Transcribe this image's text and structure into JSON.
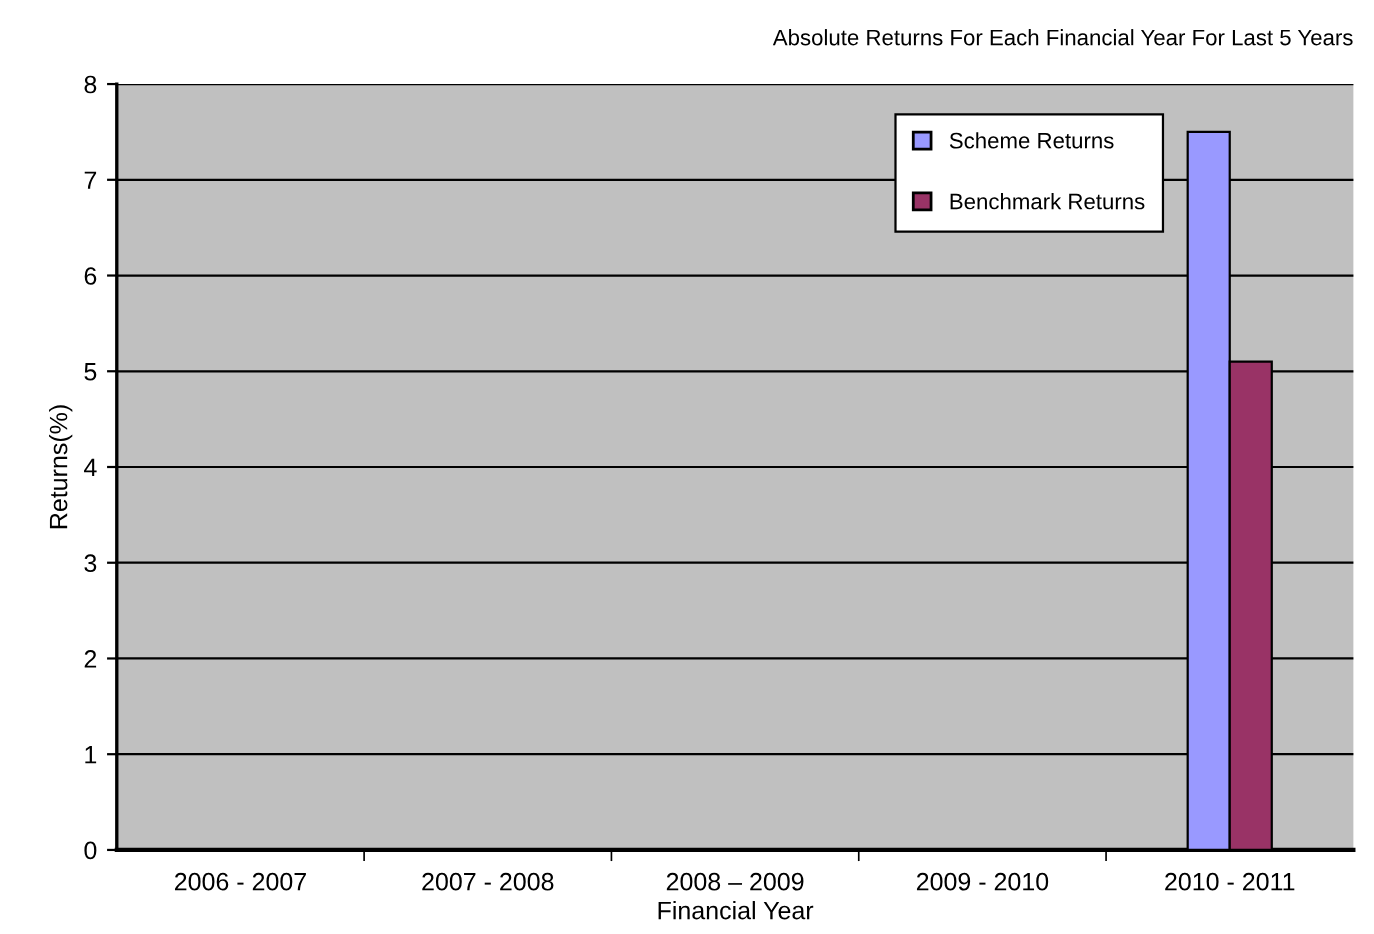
{
  "chart_data": {
    "type": "bar",
    "title": "Absolute Returns For Each Financial Year For Last 5 Years",
    "xlabel": "Financial Year",
    "ylabel": "Returns(%)",
    "categories": [
      "2006 - 2007",
      "2007 - 2008",
      "2008 – 2009",
      "2009 - 2010",
      "2010 - 2011"
    ],
    "series": [
      {
        "name": "Scheme Returns",
        "color": "#9999ff",
        "values": [
          null,
          null,
          null,
          null,
          7.5
        ]
      },
      {
        "name": "Benchmark Returns",
        "color": "#993366",
        "values": [
          null,
          null,
          null,
          null,
          5.1
        ]
      }
    ],
    "ylim": [
      0,
      8
    ],
    "yticks": [
      0,
      1,
      2,
      3,
      4,
      5,
      6,
      7,
      8
    ],
    "grid": "y",
    "legend": "top right"
  }
}
